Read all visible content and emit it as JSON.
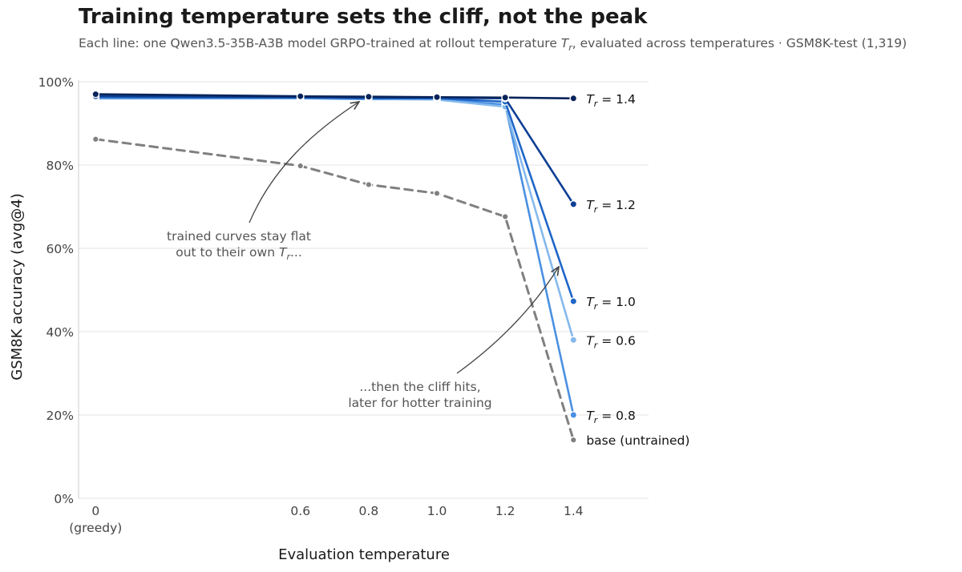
{
  "title": "Training temperature sets the cliff, not the peak",
  "subtitle_prefix": "Each line: one Qwen3.5-35B-A3B model GRPO-trained at rollout temperature ",
  "subtitle_sym": "T",
  "subtitle_sub": "r",
  "subtitle_suffix": ", evaluated across temperatures · GSM8K-test (1,319)",
  "chart_data": {
    "type": "line",
    "xlabel": "Evaluation temperature",
    "ylabel": "GSM8K accuracy (avg@4)",
    "ylim": [
      0,
      100
    ],
    "xlim": [
      -0.05,
      1.62
    ],
    "yticks": [
      0,
      20,
      40,
      60,
      80,
      100
    ],
    "ytick_labels": [
      "0%",
      "20%",
      "40%",
      "60%",
      "80%",
      "100%"
    ],
    "x": [
      0,
      0.6,
      0.8,
      1.0,
      1.2,
      1.4
    ],
    "xtick_labels": [
      "0",
      "0.6",
      "0.8",
      "1.0",
      "1.2",
      "1.4"
    ],
    "xtick_sublabel": "(greedy)",
    "grid": "horizontal",
    "series": [
      {
        "label_sym": "T",
        "label_sub": "r",
        "label_value": " = 0.8",
        "color": "#4a90e2",
        "style": "solid",
        "values": [
          96.0,
          96.0,
          95.8,
          95.8,
          94.5,
          20.0
        ]
      },
      {
        "label_sym": "T",
        "label_sub": "r",
        "label_value": " = 0.6",
        "color": "#85b9ec",
        "style": "solid",
        "values": [
          96.2,
          96.1,
          95.9,
          95.7,
          94.0,
          38.0
        ]
      },
      {
        "label_sym": "T",
        "label_sub": "r",
        "label_value": " = 1.0",
        "color": "#1f66c7",
        "style": "solid",
        "values": [
          96.3,
          96.2,
          96.0,
          96.0,
          95.2,
          47.3
        ]
      },
      {
        "label_sym": "T",
        "label_sub": "r",
        "label_value": " = 1.2",
        "color": "#0d3f94",
        "style": "solid",
        "values": [
          96.5,
          96.3,
          96.2,
          96.2,
          96.0,
          70.6
        ]
      },
      {
        "label_sym": "T",
        "label_sub": "r",
        "label_value": " = 1.4",
        "color": "#08245a",
        "style": "solid",
        "values": [
          97.0,
          96.5,
          96.4,
          96.3,
          96.2,
          96.0
        ]
      },
      {
        "label_text": "base (untrained)",
        "color": "#808080",
        "style": "dashed",
        "values": [
          86.2,
          79.8,
          75.3,
          73.2,
          67.6,
          14.0
        ]
      }
    ],
    "annotations": [
      {
        "lines": [
          "trained curves stay flat",
          "out to their own "
        ],
        "sym": "T",
        "sub": "r",
        "tail": "..."
      },
      {
        "lines": [
          "...then the cliff hits,",
          "later for hotter training"
        ]
      }
    ]
  }
}
